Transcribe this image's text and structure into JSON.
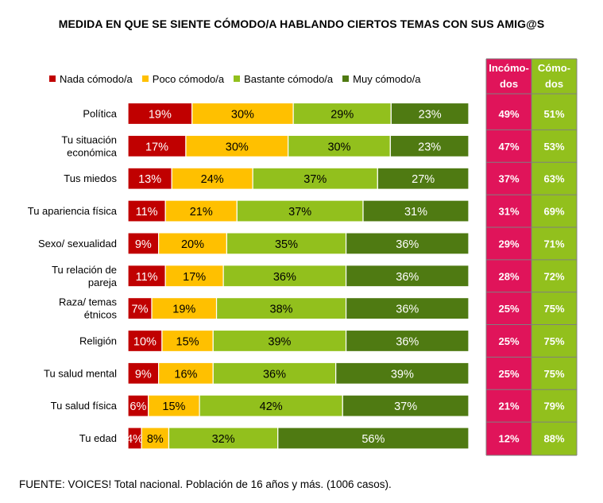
{
  "colors": {
    "nada": "#c00000",
    "poco": "#ffc000",
    "bastante": "#92c01d",
    "muy": "#4f7a12",
    "incomodos_bg": "#e0145a",
    "comodos_bg": "#92c01d",
    "text_light": "#ffffff"
  },
  "source": "FUENTE: VOICES! Total nacional. Población de 16 años y más. (1006 casos).",
  "chart_data": {
    "type": "bar",
    "orientation": "horizontal",
    "stacked": true,
    "percent_stacked": true,
    "title": "MEDIDA EN QUE SE SIENTE CÓMODO/A HABLANDO CIERTOS TEMAS CON SUS AMIG@S",
    "legend_position": "top",
    "categories": [
      [
        "Política"
      ],
      [
        "Tu situación",
        "económica"
      ],
      [
        "Tus miedos"
      ],
      [
        "Tu apariencia física"
      ],
      [
        "Sexo/ sexualidad"
      ],
      [
        "Tu relación de",
        "pareja"
      ],
      [
        "Raza/ temas",
        "étnicos"
      ],
      [
        "Religión"
      ],
      [
        "Tu salud mental"
      ],
      [
        "Tu salud física"
      ],
      [
        "Tu edad"
      ]
    ],
    "series": [
      {
        "key": "nada",
        "name": "Nada cómodo/a",
        "values": [
          19,
          17,
          13,
          11,
          9,
          11,
          7,
          10,
          9,
          6,
          4
        ]
      },
      {
        "key": "poco",
        "name": "Poco cómodo/a",
        "values": [
          30,
          30,
          24,
          21,
          20,
          17,
          19,
          15,
          16,
          15,
          8
        ]
      },
      {
        "key": "bastante",
        "name": "Bastante cómodo/a",
        "values": [
          29,
          30,
          37,
          37,
          35,
          36,
          38,
          39,
          36,
          42,
          32
        ]
      },
      {
        "key": "muy",
        "name": "Muy cómodo/a",
        "values": [
          23,
          23,
          27,
          31,
          36,
          36,
          36,
          36,
          39,
          37,
          56
        ]
      }
    ],
    "summary_table": {
      "columns": [
        {
          "key": "incomodos",
          "header": [
            "Incómo-",
            "dos"
          ],
          "values": [
            "49%",
            "47%",
            "37%",
            "31%",
            "29%",
            "28%",
            "25%",
            "25%",
            "25%",
            "21%",
            "12%"
          ]
        },
        {
          "key": "comodos",
          "header": [
            "Cómo-",
            "dos"
          ],
          "values": [
            "51%",
            "53%",
            "63%",
            "69%",
            "71%",
            "72%",
            "75%",
            "75%",
            "75%",
            "79%",
            "88%"
          ]
        }
      ]
    }
  }
}
